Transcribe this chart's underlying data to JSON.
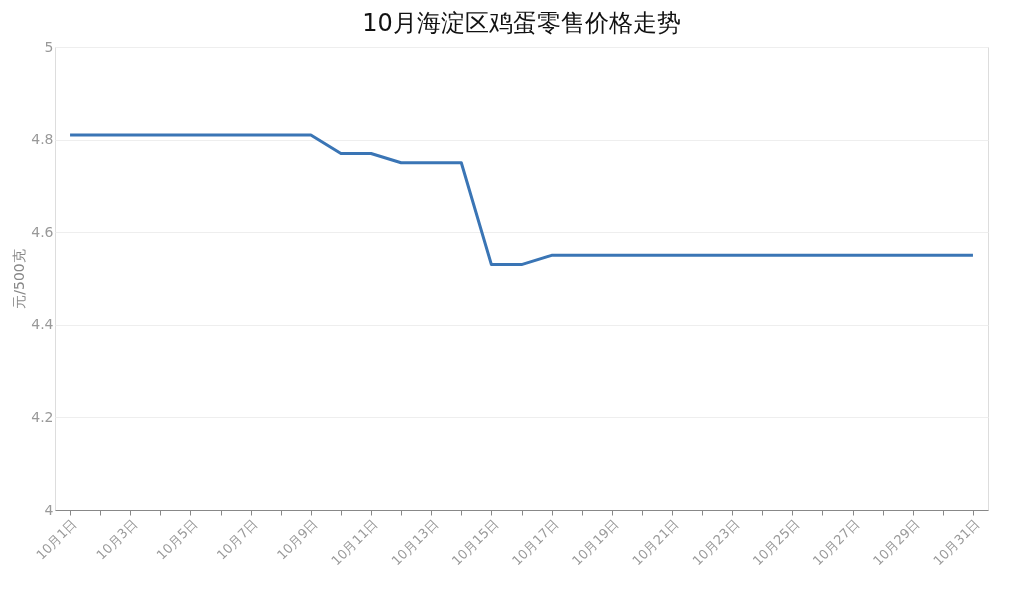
{
  "chart_data": {
    "type": "line",
    "title": "10月海淀区鸡蛋零售价格走势",
    "ylabel": "元/500克",
    "categories": [
      "10月1日",
      null,
      "10月3日",
      null,
      "10月5日",
      null,
      "10月7日",
      null,
      "10月9日",
      null,
      "10月11日",
      null,
      "10月13日",
      null,
      "10月15日",
      null,
      "10月17日",
      null,
      "10月19日",
      null,
      "10月21日",
      null,
      "10月23日",
      null,
      "10月25日",
      null,
      "10月27日",
      null,
      "10月29日",
      null,
      "10月31日"
    ],
    "series": [
      {
        "color": "#3a75b5",
        "values": [
          4.81,
          4.81,
          4.81,
          4.81,
          4.81,
          4.81,
          4.81,
          4.81,
          4.81,
          4.77,
          4.77,
          4.75,
          4.75,
          4.75,
          4.53,
          4.53,
          4.55,
          4.55,
          4.55,
          4.55,
          4.55,
          4.55,
          4.55,
          4.55,
          4.55,
          4.55,
          4.55,
          4.55,
          4.55,
          4.55,
          4.55
        ]
      }
    ],
    "ylim": [
      4,
      5
    ],
    "yticks": [
      4,
      4.2,
      4.4,
      4.6,
      4.8,
      5
    ],
    "grid": "y",
    "line_style": "solid"
  }
}
